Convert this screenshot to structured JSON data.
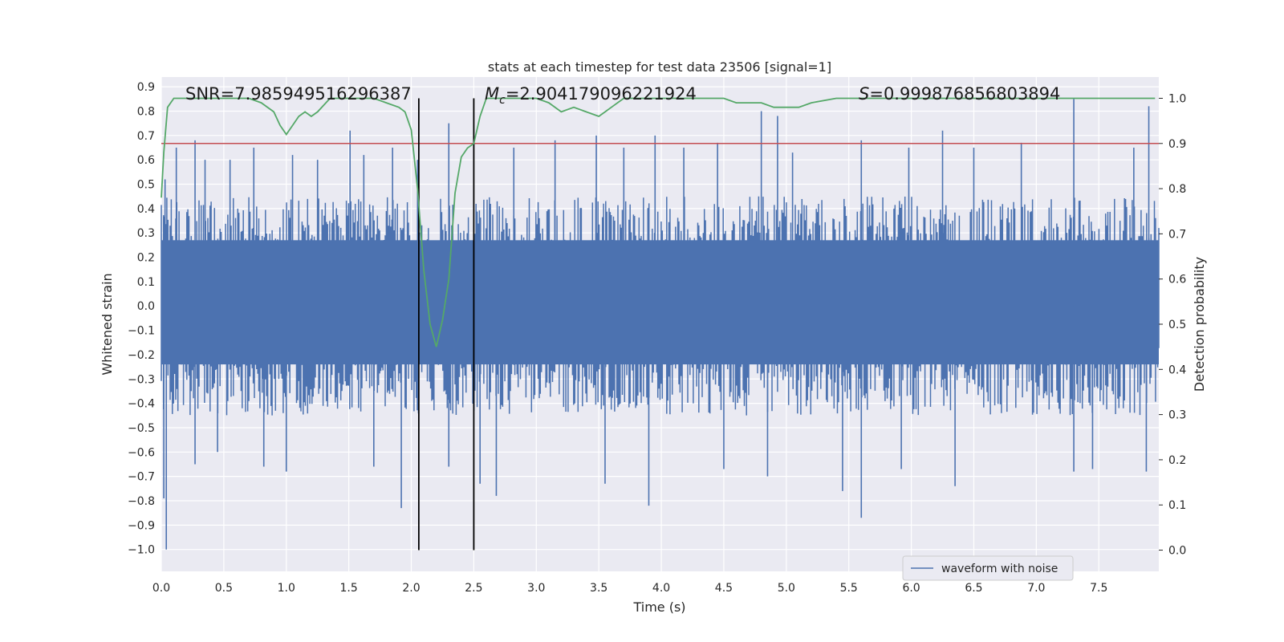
{
  "chart_data": {
    "type": "line",
    "title": "stats at each timestep for test data 23506 [signal=1]",
    "xlabel": "Time (s)",
    "ylabel": "Whitened strain",
    "y2label": "Detection probability",
    "xlim": [
      0.0,
      7.98
    ],
    "ylim": [
      -1.09,
      0.94
    ],
    "y2lim": [
      -0.047,
      1.047
    ],
    "grid": true,
    "legend_position": "lower right",
    "xticks": [
      "0.0",
      "0.5",
      "1.0",
      "1.5",
      "2.0",
      "2.5",
      "3.0",
      "3.5",
      "4.0",
      "4.5",
      "5.0",
      "5.5",
      "6.0",
      "6.5",
      "7.0",
      "7.5"
    ],
    "xtick_values": [
      0.0,
      0.5,
      1.0,
      1.5,
      2.0,
      2.5,
      3.0,
      3.5,
      4.0,
      4.5,
      5.0,
      5.5,
      6.0,
      6.5,
      7.0,
      7.5
    ],
    "yticks": [
      "0.9",
      "0.8",
      "0.7",
      "0.6",
      "0.5",
      "0.4",
      "0.3",
      "0.2",
      "0.1",
      "0.0",
      "−0.1",
      "−0.2",
      "−0.3",
      "−0.4",
      "−0.5",
      "−0.6",
      "−0.7",
      "−0.8",
      "−0.9",
      "−1.0"
    ],
    "ytick_values": [
      0.9,
      0.8,
      0.7,
      0.6,
      0.5,
      0.4,
      0.3,
      0.2,
      0.1,
      0.0,
      -0.1,
      -0.2,
      -0.3,
      -0.4,
      -0.5,
      -0.6,
      -0.7,
      -0.8,
      -0.9,
      -1.0
    ],
    "y2ticks": [
      "1.0",
      "0.9",
      "0.8",
      "0.7",
      "0.6",
      "0.5",
      "0.4",
      "0.3",
      "0.2",
      "0.1",
      "0.0"
    ],
    "y2tick_values": [
      1.0,
      0.9,
      0.8,
      0.7,
      0.6,
      0.5,
      0.4,
      0.3,
      0.2,
      0.1,
      0.0
    ],
    "annotations": {
      "snr": "SNR=7.985949516296387",
      "mc_symbol": "M",
      "mc_sub": "c",
      "mc_value": "=2.904179096221924",
      "s_symbol": "S",
      "s_value": "=0.999876856803894"
    },
    "series": [
      {
        "name": "waveform with noise",
        "color": "#4c72b0",
        "axis": "left",
        "description_of_values": "noise envelope",
        "envelope_upper_typical": 0.45,
        "envelope_lower_typical": -0.45,
        "peaks_upper": [
          [
            0.03,
            0.52
          ],
          [
            0.12,
            0.65
          ],
          [
            0.27,
            0.68
          ],
          [
            0.35,
            0.6
          ],
          [
            0.55,
            0.6
          ],
          [
            0.74,
            0.65
          ],
          [
            1.05,
            0.62
          ],
          [
            1.25,
            0.6
          ],
          [
            1.51,
            0.72
          ],
          [
            1.62,
            0.62
          ],
          [
            1.85,
            0.65
          ],
          [
            2.05,
            0.6
          ],
          [
            2.3,
            0.75
          ],
          [
            2.82,
            0.65
          ],
          [
            3.15,
            0.68
          ],
          [
            3.48,
            0.7
          ],
          [
            3.7,
            0.65
          ],
          [
            3.95,
            0.7
          ],
          [
            4.18,
            0.65
          ],
          [
            4.45,
            0.67
          ],
          [
            4.8,
            0.8
          ],
          [
            4.93,
            0.78
          ],
          [
            5.05,
            0.63
          ],
          [
            5.6,
            0.68
          ],
          [
            5.98,
            0.65
          ],
          [
            6.25,
            0.72
          ],
          [
            6.5,
            0.65
          ],
          [
            6.88,
            0.67
          ],
          [
            7.3,
            0.85
          ],
          [
            7.78,
            0.65
          ],
          [
            7.9,
            0.82
          ]
        ],
        "peaks_lower": [
          [
            0.02,
            -0.79
          ],
          [
            0.04,
            -1.0
          ],
          [
            0.27,
            -0.65
          ],
          [
            0.45,
            -0.6
          ],
          [
            0.82,
            -0.66
          ],
          [
            1.0,
            -0.68
          ],
          [
            1.7,
            -0.66
          ],
          [
            1.92,
            -0.83
          ],
          [
            2.3,
            -0.66
          ],
          [
            2.55,
            -0.73
          ],
          [
            2.68,
            -0.78
          ],
          [
            3.55,
            -0.73
          ],
          [
            3.9,
            -0.82
          ],
          [
            4.5,
            -0.67
          ],
          [
            4.85,
            -0.7
          ],
          [
            5.45,
            -0.76
          ],
          [
            5.6,
            -0.87
          ],
          [
            5.92,
            -0.67
          ],
          [
            6.35,
            -0.74
          ],
          [
            7.3,
            -0.68
          ],
          [
            7.45,
            -0.67
          ],
          [
            7.88,
            -0.68
          ]
        ]
      },
      {
        "name": "",
        "color": "#55a868",
        "axis": "right",
        "x": [
          0.0,
          0.02,
          0.05,
          0.1,
          0.15,
          0.3,
          0.5,
          0.7,
          0.8,
          0.9,
          0.95,
          1.0,
          1.05,
          1.1,
          1.15,
          1.2,
          1.25,
          1.35,
          1.55,
          1.7,
          1.8,
          1.9,
          1.95,
          2.0,
          2.05,
          2.1,
          2.15,
          2.2,
          2.25,
          2.3,
          2.35,
          2.4,
          2.45,
          2.5,
          2.55,
          2.6,
          2.65,
          2.7,
          2.8,
          3.0,
          3.1,
          3.2,
          3.3,
          3.4,
          3.5,
          3.55,
          3.6,
          3.7,
          3.8,
          4.0,
          4.3,
          4.5,
          4.6,
          4.7,
          4.8,
          4.9,
          5.0,
          5.1,
          5.2,
          5.4,
          5.6,
          6.0,
          6.5,
          7.0,
          7.5,
          7.95
        ],
        "y": [
          0.78,
          0.88,
          0.98,
          1.0,
          1.0,
          1.0,
          1.0,
          1.0,
          0.99,
          0.97,
          0.94,
          0.92,
          0.94,
          0.96,
          0.97,
          0.96,
          0.97,
          1.0,
          1.0,
          1.0,
          0.99,
          0.98,
          0.97,
          0.93,
          0.8,
          0.62,
          0.5,
          0.45,
          0.51,
          0.6,
          0.79,
          0.87,
          0.89,
          0.9,
          0.96,
          1.0,
          1.0,
          1.0,
          1.0,
          1.0,
          0.99,
          0.97,
          0.98,
          0.97,
          0.96,
          0.97,
          0.98,
          1.0,
          1.0,
          1.0,
          1.0,
          1.0,
          0.99,
          0.99,
          0.99,
          0.98,
          0.98,
          0.98,
          0.99,
          1.0,
          1.0,
          1.0,
          1.0,
          1.0,
          1.0,
          1.0
        ]
      }
    ],
    "hlines": [
      {
        "axis": "right",
        "y": 0.9,
        "color": "#c44e52"
      }
    ],
    "vlines": [
      {
        "x": 2.06,
        "color": "#000000"
      },
      {
        "x": 2.5,
        "color": "#000000"
      }
    ]
  }
}
